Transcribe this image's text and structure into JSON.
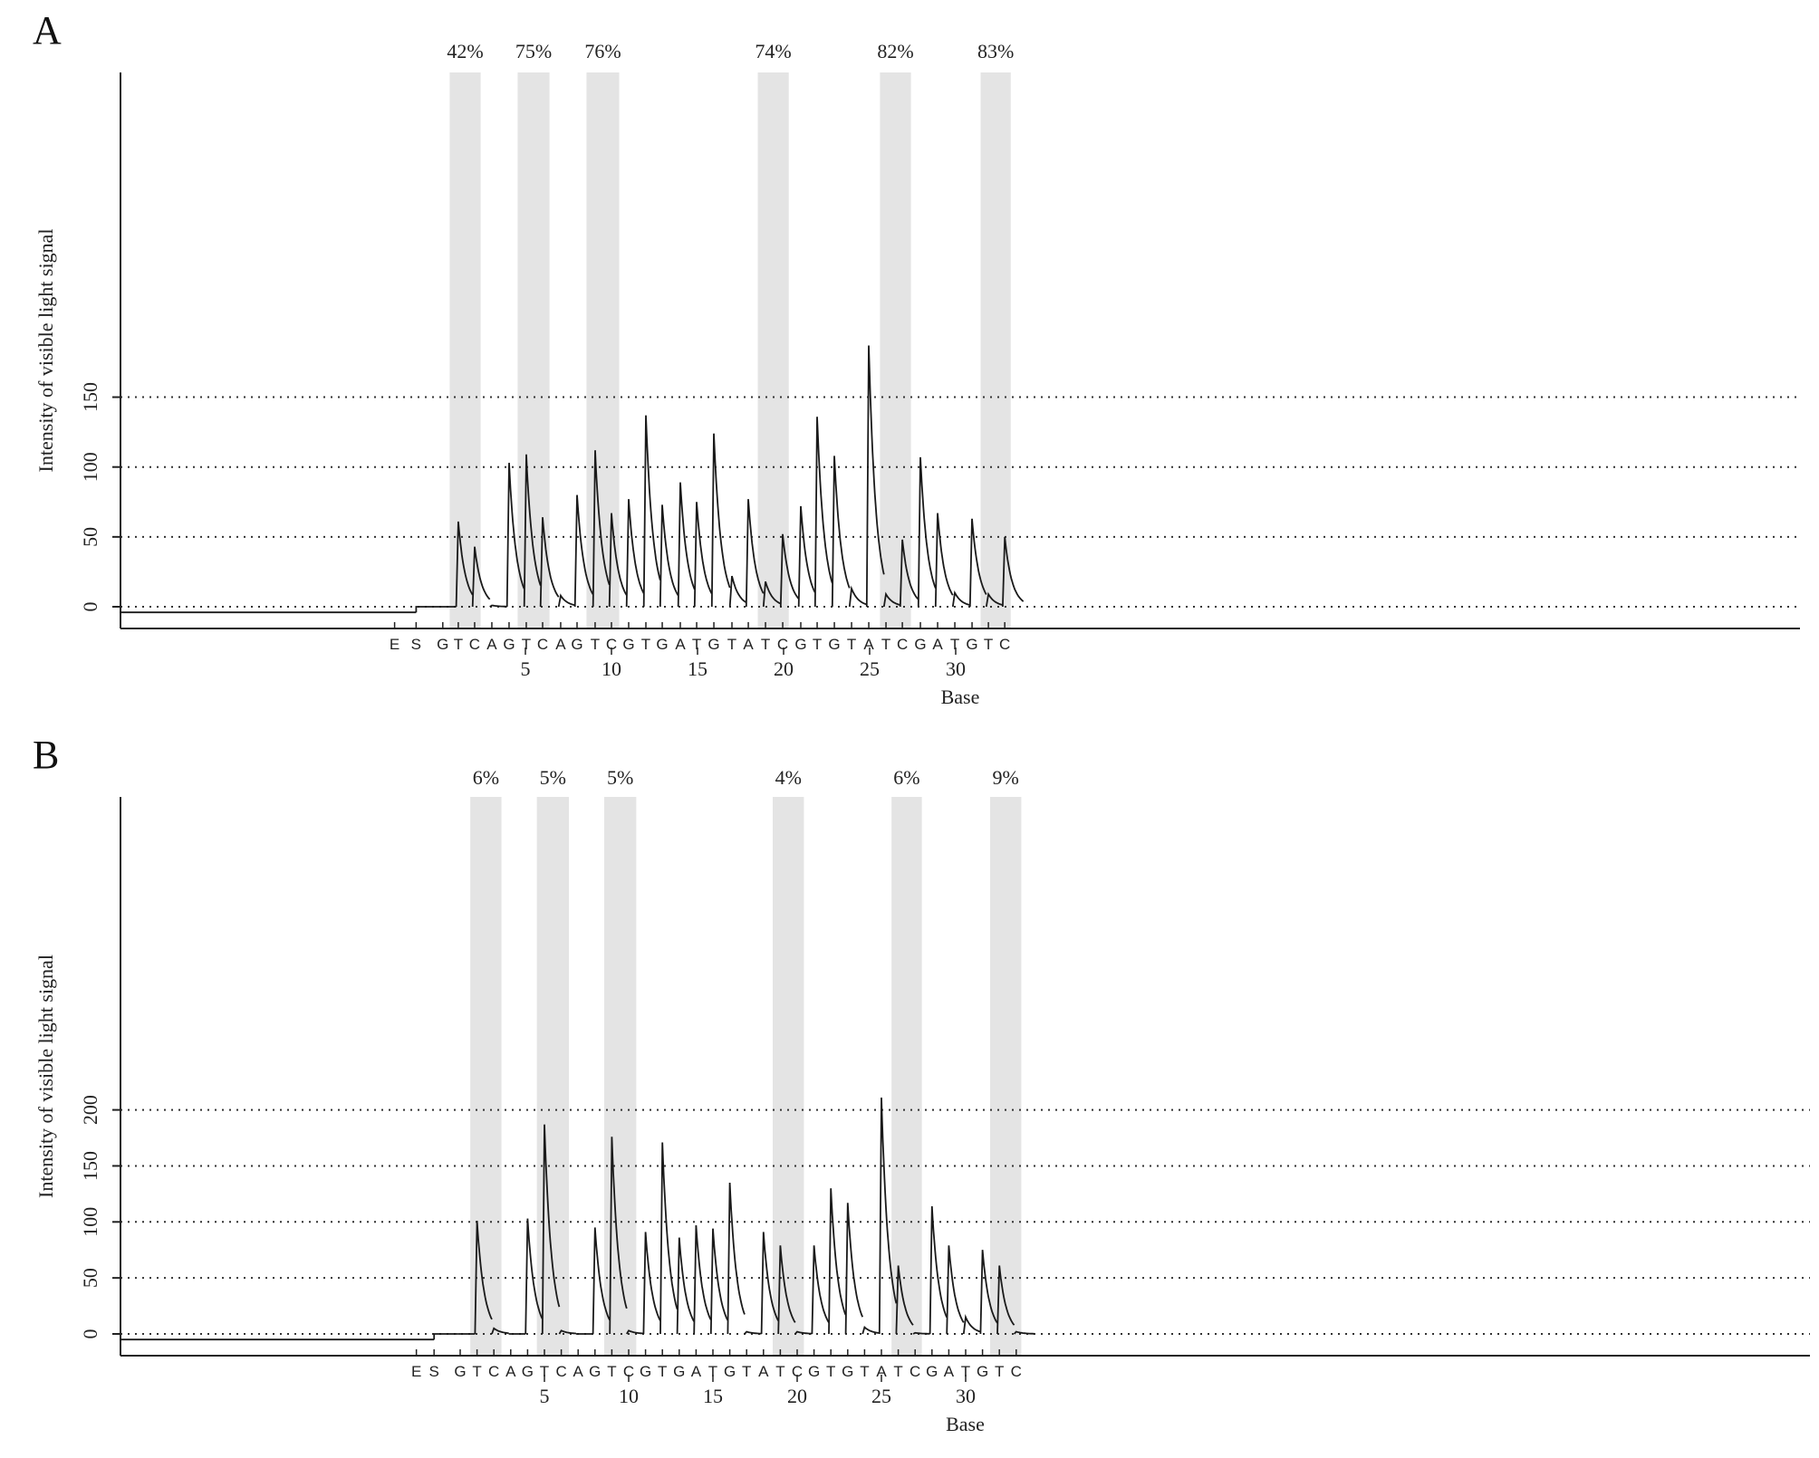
{
  "chart_data": [
    {
      "panel": "A",
      "type": "line",
      "title": "",
      "xlabel": "Base",
      "ylabel": "Intensity of visible light signal",
      "ylim": [
        -7,
        192
      ],
      "yticks": [
        0,
        50,
        100,
        150
      ],
      "xticks": [
        5,
        10,
        15,
        20,
        25,
        30
      ],
      "dispensation": [
        "E",
        "S",
        "G",
        "T",
        "C",
        "A",
        "G",
        "T",
        "C",
        "A",
        "G",
        "T",
        "C",
        "G",
        "T",
        "G",
        "A",
        "T",
        "G",
        "T",
        "A",
        "T",
        "C",
        "G",
        "T",
        "G",
        "T",
        "A",
        "T",
        "C",
        "G",
        "A",
        "T",
        "G",
        "T",
        "C"
      ],
      "dispensation_positions": [
        -2.6,
        -1.35,
        0.2,
        1.1,
        2.05,
        3.05,
        4.05,
        5.05,
        6.0,
        7.05,
        8.0,
        9.05,
        10.0,
        11.0,
        12.0,
        12.95,
        14.0,
        14.95,
        15.95,
        17.0,
        17.95,
        18.95,
        19.95,
        21.0,
        21.95,
        22.95,
        23.95,
        24.95,
        25.95,
        26.9,
        27.95,
        28.95,
        29.95,
        30.95,
        31.9,
        32.85
      ],
      "peaks": [
        8,
        0,
        0,
        61,
        43,
        1,
        103,
        109,
        64,
        8,
        80,
        112,
        67,
        77,
        137,
        73,
        89,
        75,
        124,
        22,
        77,
        18,
        52,
        72,
        136,
        108,
        13,
        187,
        9,
        48,
        107,
        67,
        10,
        63,
        9,
        50
      ],
      "baseline_before_start": -4,
      "highlights": [
        {
          "label": "42%",
          "from": 0.6,
          "to": 2.4
        },
        {
          "label": "75%",
          "from": 4.55,
          "to": 6.4
        },
        {
          "label": "76%",
          "from": 8.55,
          "to": 10.45
        },
        {
          "label": "74%",
          "from": 18.5,
          "to": 20.3
        },
        {
          "label": "82%",
          "from": 25.6,
          "to": 27.4
        },
        {
          "label": "83%",
          "from": 31.45,
          "to": 33.2
        }
      ],
      "grid": "dotted horizontal"
    },
    {
      "panel": "B",
      "type": "line",
      "title": "",
      "xlabel": "Base",
      "ylabel": "Intensity of visible light signal",
      "ylim": [
        -7,
        244
      ],
      "yticks": [
        0,
        50,
        100,
        150,
        200
      ],
      "xticks": [
        5,
        10,
        15,
        20,
        25,
        30
      ],
      "dispensation": [
        "E",
        "S",
        "G",
        "T",
        "C",
        "A",
        "G",
        "T",
        "C",
        "A",
        "G",
        "T",
        "C",
        "G",
        "T",
        "G",
        "A",
        "T",
        "G",
        "T",
        "A",
        "T",
        "C",
        "G",
        "T",
        "G",
        "T",
        "A",
        "T",
        "C",
        "G",
        "A",
        "T",
        "G",
        "T",
        "C"
      ],
      "dispensation_positions": [
        -2.6,
        -1.55,
        0.0,
        1.0,
        2.0,
        3.0,
        4.0,
        5.0,
        6.0,
        7.0,
        8.0,
        9.0,
        10.0,
        11.0,
        12.0,
        13.0,
        14.0,
        15.0,
        16.0,
        17.0,
        18.0,
        19.0,
        20.0,
        21.0,
        22.0,
        23.0,
        24.0,
        25.0,
        26.0,
        27.0,
        28.0,
        29.0,
        30.0,
        31.0,
        32.0,
        33.0
      ],
      "peaks": [
        8,
        0,
        0,
        101,
        5,
        0,
        103,
        187,
        3,
        0,
        95,
        176,
        3,
        91,
        171,
        86,
        97,
        94,
        135,
        2,
        91,
        79,
        2,
        79,
        130,
        117,
        6,
        211,
        61,
        1,
        114,
        79,
        15,
        75,
        61,
        2
      ],
      "baseline_before_start": -5,
      "highlights": [
        {
          "label": "6%",
          "from": 0.6,
          "to": 2.45
        },
        {
          "label": "5%",
          "from": 4.55,
          "to": 6.45
        },
        {
          "label": "5%",
          "from": 8.55,
          "to": 10.45
        },
        {
          "label": "4%",
          "from": 18.55,
          "to": 20.4
        },
        {
          "label": "6%",
          "from": 25.6,
          "to": 27.4
        },
        {
          "label": "9%",
          "from": 31.45,
          "to": 33.3
        }
      ],
      "grid": "dotted horizontal"
    }
  ],
  "panels": {
    "a_letter": "A",
    "b_letter": "B"
  },
  "colors": {
    "trace": "#1a1a1a",
    "highlight": "#e4e4e4",
    "grid": "#333333"
  }
}
